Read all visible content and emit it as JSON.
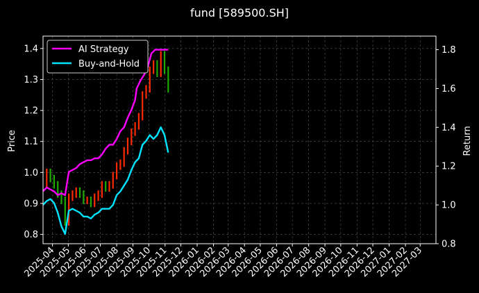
{
  "chart_data": {
    "type": "line",
    "title": "fund [589500.SH]",
    "ylabel_left": "Price",
    "ylabel_right": "Return",
    "ylim_left": [
      0.77,
      1.44
    ],
    "ylim_right": [
      0.8,
      1.87
    ],
    "yticks_left": [
      "0.8",
      "0.9",
      "1.0",
      "1.1",
      "1.2",
      "1.3",
      "1.4"
    ],
    "yticks_right": [
      "0.8",
      "1.0",
      "1.2",
      "1.4",
      "1.6",
      "1.8"
    ],
    "xticks": [
      "2025-04",
      "2025-05",
      "2025-06",
      "2025-07",
      "2025-08",
      "2025-09",
      "2025-10",
      "2025-11",
      "2025-12",
      "2026-01",
      "2026-02",
      "2026-03",
      "2026-04",
      "2026-05",
      "2026-06",
      "2026-07",
      "2026-08",
      "2026-09",
      "2026-10",
      "2026-11",
      "2026-12",
      "2027-01",
      "2027-02",
      "2027-03"
    ],
    "x_range": [
      "2025-03-14",
      "2027-03-31"
    ],
    "grid": true,
    "legend_position": "top-left",
    "colors": {
      "background": "#000000",
      "ai": "#ff00ff",
      "bh": "#00e5ff",
      "up": "#ff2a00",
      "down": "#1faa00",
      "grid": "#555555",
      "frame": "#ffffff"
    },
    "price_series": {
      "name": "",
      "x": [
        "2025-03-14",
        "2025-03-21",
        "2025-03-28",
        "2025-04-04",
        "2025-04-11",
        "2025-04-18",
        "2025-04-25",
        "2025-05-02",
        "2025-05-09",
        "2025-05-16",
        "2025-05-23",
        "2025-05-30",
        "2025-06-06",
        "2025-06-13",
        "2025-06-20",
        "2025-06-27",
        "2025-07-04",
        "2025-07-11",
        "2025-07-18",
        "2025-07-25",
        "2025-08-01",
        "2025-08-08",
        "2025-08-15",
        "2025-08-22",
        "2025-08-29",
        "2025-09-05",
        "2025-09-12",
        "2025-09-19",
        "2025-09-26",
        "2025-10-03",
        "2025-10-10",
        "2025-10-17",
        "2025-10-24",
        "2025-10-31",
        "2025-11-07"
      ],
      "values": [
        0.96,
        1.0,
        0.98,
        0.96,
        0.93,
        0.91,
        0.84,
        0.92,
        0.93,
        0.94,
        0.93,
        0.91,
        0.91,
        0.9,
        0.92,
        0.93,
        0.96,
        0.95,
        0.96,
        0.99,
        1.02,
        1.03,
        1.07,
        1.1,
        1.13,
        1.15,
        1.18,
        1.25,
        1.27,
        1.33,
        1.35,
        1.32,
        1.38,
        1.33,
        1.27
      ]
    },
    "series": [
      {
        "name": "AI Strategy",
        "x": [
          "2025-03-14",
          "2025-03-21",
          "2025-03-28",
          "2025-04-04",
          "2025-04-11",
          "2025-04-18",
          "2025-04-25",
          "2025-05-02",
          "2025-05-09",
          "2025-05-16",
          "2025-05-23",
          "2025-05-30",
          "2025-06-06",
          "2025-06-13",
          "2025-06-20",
          "2025-06-27",
          "2025-07-04",
          "2025-07-11",
          "2025-07-18",
          "2025-07-25",
          "2025-08-01",
          "2025-08-08",
          "2025-08-15",
          "2025-08-22",
          "2025-08-29",
          "2025-09-05",
          "2025-09-08",
          "2025-09-15",
          "2025-09-22",
          "2025-09-29",
          "2025-10-06",
          "2025-10-13",
          "2025-10-20",
          "2025-10-27",
          "2025-11-03",
          "2025-11-07"
        ],
        "values": [
          1.07,
          1.09,
          1.08,
          1.07,
          1.05,
          1.06,
          1.05,
          1.17,
          1.18,
          1.19,
          1.21,
          1.22,
          1.23,
          1.23,
          1.24,
          1.24,
          1.26,
          1.29,
          1.31,
          1.31,
          1.34,
          1.38,
          1.4,
          1.45,
          1.49,
          1.54,
          1.6,
          1.64,
          1.67,
          1.71,
          1.78,
          1.8,
          1.8,
          1.8,
          1.8,
          1.8
        ]
      },
      {
        "name": "Buy-and-Hold",
        "x": [
          "2025-03-14",
          "2025-03-21",
          "2025-03-28",
          "2025-04-04",
          "2025-04-11",
          "2025-04-18",
          "2025-04-25",
          "2025-05-02",
          "2025-05-09",
          "2025-05-16",
          "2025-05-23",
          "2025-05-30",
          "2025-06-06",
          "2025-06-13",
          "2025-06-20",
          "2025-06-27",
          "2025-07-04",
          "2025-07-11",
          "2025-07-18",
          "2025-07-25",
          "2025-08-01",
          "2025-08-08",
          "2025-08-15",
          "2025-08-22",
          "2025-08-29",
          "2025-09-05",
          "2025-09-12",
          "2025-09-19",
          "2025-09-26",
          "2025-10-03",
          "2025-10-10",
          "2025-10-17",
          "2025-10-24",
          "2025-10-31",
          "2025-11-07"
        ],
        "values": [
          1.0,
          1.02,
          1.03,
          1.01,
          0.96,
          0.89,
          0.85,
          0.97,
          0.98,
          0.97,
          0.96,
          0.94,
          0.94,
          0.93,
          0.95,
          0.96,
          0.98,
          0.98,
          0.98,
          1.0,
          1.05,
          1.07,
          1.1,
          1.13,
          1.18,
          1.22,
          1.24,
          1.31,
          1.33,
          1.36,
          1.34,
          1.36,
          1.4,
          1.36,
          1.27
        ]
      }
    ]
  }
}
